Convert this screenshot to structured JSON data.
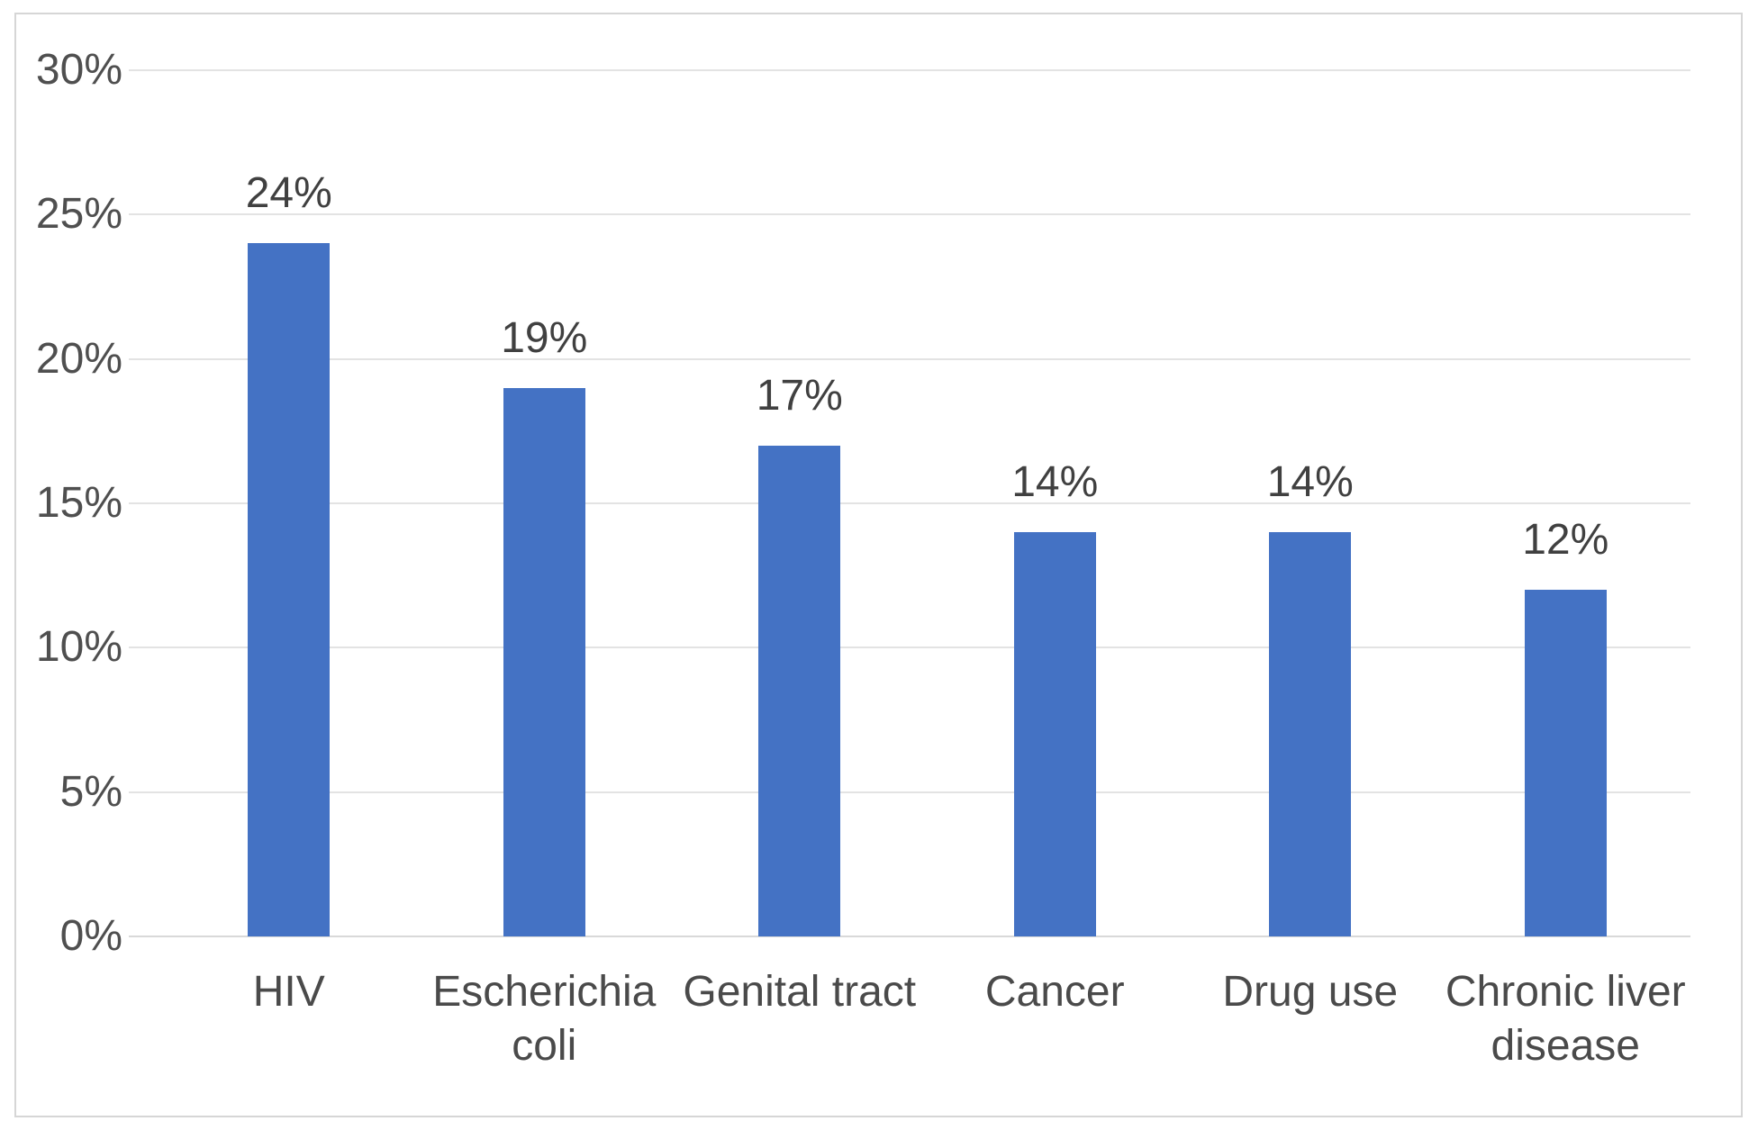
{
  "chart_data": {
    "type": "bar",
    "title": "",
    "xlabel": "",
    "ylabel": "",
    "categories": [
      "HIV",
      "Escherichia coli",
      "Genital tract",
      "Cancer",
      "Drug use",
      "Chronic liver disease"
    ],
    "values": [
      24,
      19,
      17,
      14,
      14,
      12
    ],
    "data_labels": [
      "24%",
      "19%",
      "17%",
      "14%",
      "14%",
      "12%"
    ],
    "ylim": [
      0,
      30
    ],
    "ytick_step": 5,
    "ytick_labels": [
      "0%",
      "5%",
      "10%",
      "15%",
      "20%",
      "25%",
      "30%"
    ],
    "grid": "horizontal gridlines on",
    "legend": "none",
    "colors": {
      "bar": "#4472C4",
      "gridline": "#E3E3E3",
      "baseline": "#D9D9D9",
      "tick_label": "#4F4F4F",
      "data_label": "#404040",
      "category_label": "#4A4A4A",
      "frame_border": "#D6D6D6",
      "background": "#FFFFFF"
    }
  }
}
